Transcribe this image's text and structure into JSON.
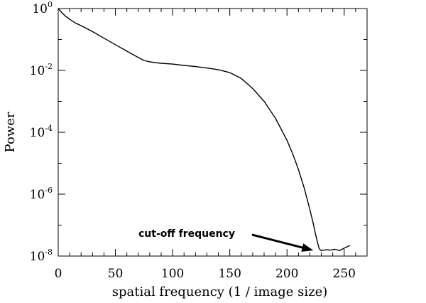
{
  "chart_data": {
    "type": "line",
    "title": "",
    "xlabel": "spatial frequency (1 / image size)",
    "ylabel": "Power",
    "xlim": [
      0,
      270
    ],
    "ylim_log10": [
      -8,
      0
    ],
    "y_scale": "log",
    "x_ticks": [
      0,
      50,
      100,
      150,
      200,
      250
    ],
    "x_tick_labels": [
      "0",
      "50",
      "100",
      "150",
      "200",
      "250"
    ],
    "y_ticks": [
      {
        "base": "10",
        "exp": "0",
        "log10": 0
      },
      {
        "base": "10",
        "exp": "-2",
        "log10": -2
      },
      {
        "base": "10",
        "exp": "-4",
        "log10": -4
      },
      {
        "base": "10",
        "exp": "-6",
        "log10": -6
      },
      {
        "base": "10",
        "exp": "-8",
        "log10": -8
      }
    ],
    "grid": false,
    "series": [
      {
        "x": [
          0,
          3,
          6,
          10,
          15,
          20,
          30,
          40,
          50,
          60,
          65,
          70,
          75,
          80,
          90,
          100,
          110,
          120,
          130,
          140,
          150,
          160,
          170,
          180,
          190,
          200,
          205,
          210,
          215,
          220,
          223,
          225,
          227,
          228,
          229,
          230,
          232,
          235,
          238,
          242,
          246,
          250,
          255
        ],
        "y": [
          1,
          0.75,
          0.58,
          0.45,
          0.34,
          0.28,
          0.18,
          0.11,
          0.068,
          0.042,
          0.033,
          0.026,
          0.021,
          0.019,
          0.017,
          0.016,
          0.0145,
          0.0133,
          0.012,
          0.0105,
          0.0085,
          0.0055,
          0.0026,
          0.001,
          0.00028,
          5.5e-05,
          2e-05,
          6.3e-06,
          1.6e-06,
          3.2e-07,
          1.1e-07,
          5e-08,
          2.5e-08,
          1.8e-08,
          1.6e-08,
          1.5e-08,
          1.55e-08,
          1.6e-08,
          1.55e-08,
          1.65e-08,
          1.5e-08,
          1.8e-08,
          2.2e-08
        ]
      }
    ],
    "annotations": [
      {
        "text": "cut-off frequency",
        "points_to": {
          "x": 228,
          "y": 1.7e-08
        }
      }
    ]
  }
}
